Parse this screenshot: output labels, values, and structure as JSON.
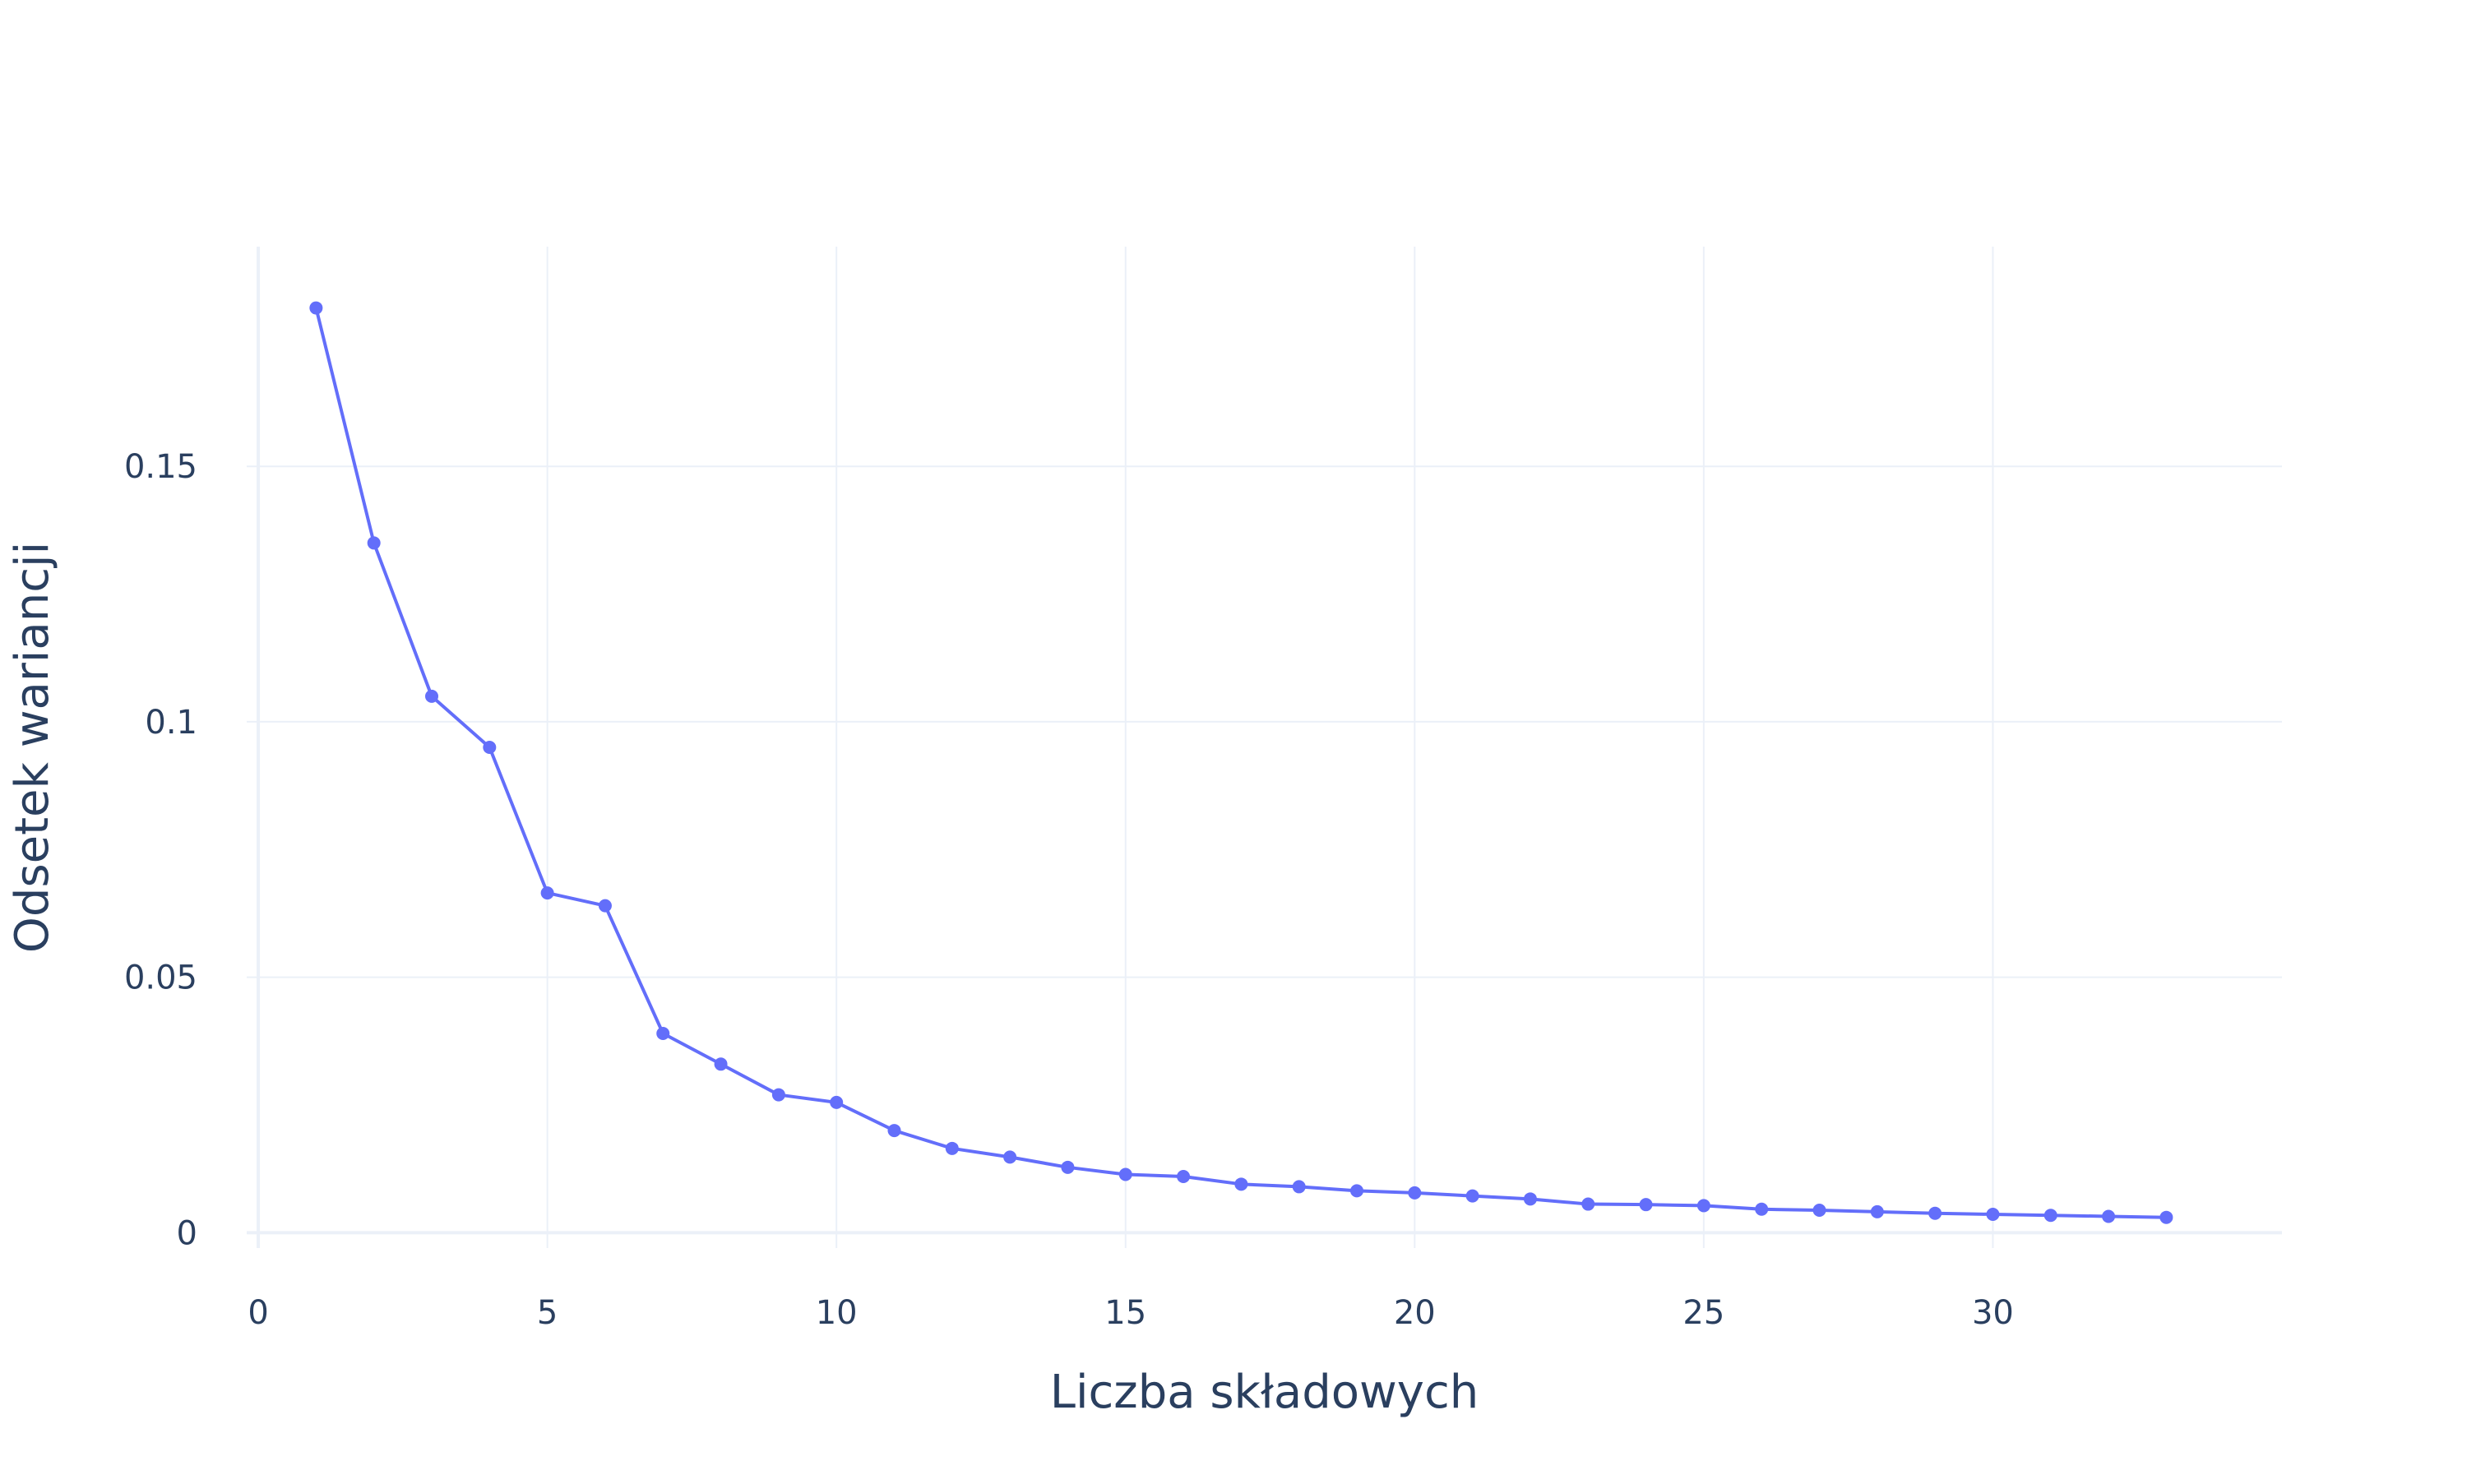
{
  "chart_data": {
    "type": "line",
    "title": "",
    "xlabel": "Liczba składowych",
    "ylabel": "Odsetek wariancji",
    "xlim": [
      -0.2,
      35
    ],
    "ylim": [
      -0.003,
      0.193
    ],
    "x_ticks": [
      0,
      5,
      10,
      15,
      20,
      25,
      30
    ],
    "x_tick_labels": [
      "0",
      "5",
      "10",
      "15",
      "20",
      "25",
      "30"
    ],
    "y_ticks": [
      0,
      0.05,
      0.1,
      0.15
    ],
    "y_tick_labels": [
      "0",
      "0.05",
      "0.1",
      "0.15"
    ],
    "grid": true,
    "line_color": "#636efa",
    "series": [
      {
        "x": [
          1,
          2,
          3,
          4,
          5,
          6,
          7,
          8,
          9,
          10,
          11,
          12,
          13,
          14,
          15,
          16,
          17,
          18,
          19,
          20,
          21,
          22,
          23,
          24,
          25,
          26,
          27,
          28,
          29,
          30,
          31,
          32,
          33
        ],
        "values": [
          0.181,
          0.135,
          0.105,
          0.095,
          0.0665,
          0.064,
          0.039,
          0.033,
          0.027,
          0.0255,
          0.02,
          0.0165,
          0.0148,
          0.0128,
          0.0114,
          0.011,
          0.0095,
          0.009,
          0.0082,
          0.0078,
          0.0072,
          0.0066,
          0.0056,
          0.0055,
          0.0053,
          0.0046,
          0.0044,
          0.0041,
          0.0038,
          0.0036,
          0.0034,
          0.0032,
          0.003
        ]
      }
    ]
  }
}
